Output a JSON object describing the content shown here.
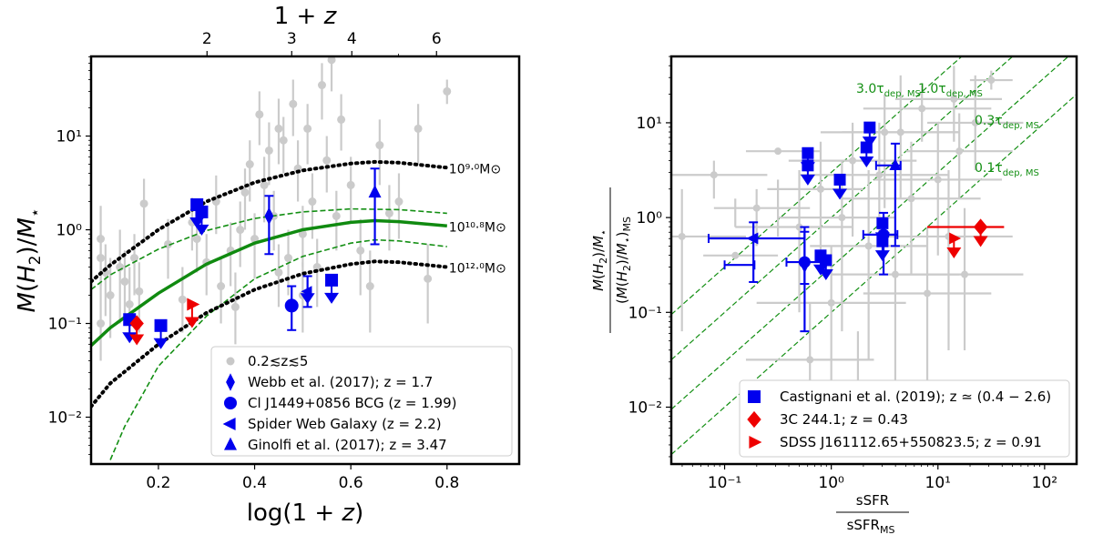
{
  "chart_data": [
    {
      "type": "scatter",
      "panel": "left",
      "xlabel": "log(1 + z)",
      "ylabel": "M(H2)/M*",
      "top_xlabel": "1 + z",
      "xlim": [
        0.06,
        0.95
      ],
      "ylim_log10": [
        -2.5,
        1.85
      ],
      "yscale": "log",
      "x_ticks": [
        0.2,
        0.4,
        0.6,
        0.8
      ],
      "y_ticks": [
        {
          "exp": -2,
          "label": "10⁻²"
        },
        {
          "exp": -1,
          "label": "10⁻¹"
        },
        {
          "exp": 0,
          "label": "10⁰"
        },
        {
          "exp": 1,
          "label": "10¹"
        }
      ],
      "top_ticks": [
        {
          "value": 2,
          "label": "2"
        },
        {
          "value": 3,
          "label": "3"
        },
        {
          "value": 4,
          "label": "4"
        },
        {
          "value": 6,
          "label": "6"
        }
      ],
      "legend_position": "lower-right",
      "curves": [
        {
          "name": "10^{9.0} M⊙",
          "label": "10⁹·⁰M⊙",
          "style": "dotted-black",
          "points": [
            [
              0.06,
              0.28
            ],
            [
              0.1,
              0.42
            ],
            [
              0.2,
              1.0
            ],
            [
              0.3,
              2.0
            ],
            [
              0.4,
              3.2
            ],
            [
              0.5,
              4.3
            ],
            [
              0.6,
              5.1
            ],
            [
              0.65,
              5.3
            ],
            [
              0.7,
              5.2
            ],
            [
              0.8,
              4.6
            ]
          ]
        },
        {
          "name": "10^{10.8} M⊙",
          "label": "10¹⁰·⁸M⊙",
          "style": "solid-green",
          "points": [
            [
              0.06,
              0.058
            ],
            [
              0.1,
              0.09
            ],
            [
              0.2,
              0.21
            ],
            [
              0.3,
              0.43
            ],
            [
              0.4,
              0.72
            ],
            [
              0.5,
              1.0
            ],
            [
              0.6,
              1.2
            ],
            [
              0.65,
              1.25
            ],
            [
              0.7,
              1.22
            ],
            [
              0.8,
              1.1
            ]
          ]
        },
        {
          "name": "upper-band",
          "style": "dashed-green",
          "points": [
            [
              0.06,
              0.23
            ],
            [
              0.1,
              0.33
            ],
            [
              0.2,
              0.62
            ],
            [
              0.3,
              0.98
            ],
            [
              0.4,
              1.32
            ],
            [
              0.5,
              1.55
            ],
            [
              0.6,
              1.67
            ],
            [
              0.7,
              1.64
            ],
            [
              0.8,
              1.5
            ]
          ]
        },
        {
          "name": "lower-band",
          "style": "dashed-green",
          "points": [
            [
              0.1,
              0.0035
            ],
            [
              0.13,
              0.008
            ],
            [
              0.16,
              0.015
            ],
            [
              0.2,
              0.035
            ],
            [
              0.3,
              0.12
            ],
            [
              0.4,
              0.3
            ],
            [
              0.5,
              0.52
            ],
            [
              0.6,
              0.72
            ],
            [
              0.65,
              0.78
            ],
            [
              0.7,
              0.76
            ],
            [
              0.8,
              0.66
            ]
          ]
        },
        {
          "name": "10^{12.0} M⊙",
          "label": "10¹²·⁰M⊙",
          "style": "dotted-black",
          "points": [
            [
              0.06,
              0.013
            ],
            [
              0.1,
              0.023
            ],
            [
              0.2,
              0.06
            ],
            [
              0.3,
              0.13
            ],
            [
              0.4,
              0.23
            ],
            [
              0.5,
              0.34
            ],
            [
              0.6,
              0.43
            ],
            [
              0.65,
              0.46
            ],
            [
              0.7,
              0.45
            ],
            [
              0.8,
              0.4
            ]
          ]
        }
      ],
      "background_points": [
        [
          0.08,
          0.8,
          0.3,
          1.8
        ],
        [
          0.08,
          0.5,
          0.25,
          0.9
        ],
        [
          0.08,
          0.1,
          0.04,
          0.4
        ],
        [
          0.09,
          0.35,
          0.12,
          0.7
        ],
        [
          0.1,
          0.2,
          0.07,
          0.5
        ],
        [
          0.12,
          0.4,
          0.1,
          1.0
        ],
        [
          0.13,
          0.28,
          0.1,
          0.6
        ],
        [
          0.14,
          0.16,
          0.07,
          0.4
        ],
        [
          0.15,
          0.5,
          0.2,
          0.9
        ],
        [
          0.16,
          0.22,
          0.08,
          0.45
        ],
        [
          0.17,
          1.9,
          0.8,
          3.5
        ],
        [
          0.22,
          0.7,
          0.3,
          1.3
        ],
        [
          0.25,
          0.18,
          0.08,
          0.4
        ],
        [
          0.27,
          1.2,
          0.6,
          2.2
        ],
        [
          0.3,
          0.45,
          0.2,
          0.9
        ],
        [
          0.32,
          2.0,
          0.9,
          3.8
        ],
        [
          0.35,
          0.6,
          0.25,
          1.2
        ],
        [
          0.37,
          1.0,
          0.4,
          2.0
        ],
        [
          0.38,
          2.5,
          1.0,
          4.5
        ],
        [
          0.39,
          5.0,
          2.0,
          9.0
        ],
        [
          0.4,
          0.8,
          0.3,
          1.5
        ],
        [
          0.41,
          17,
          8,
          30
        ],
        [
          0.42,
          3.0,
          1.2,
          6
        ],
        [
          0.43,
          7.0,
          3,
          14
        ],
        [
          0.44,
          1.4,
          0.6,
          2.6
        ],
        [
          0.45,
          0.35,
          0.15,
          0.7
        ],
        [
          0.46,
          9.0,
          4,
          16
        ],
        [
          0.47,
          0.5,
          0.2,
          1.0
        ],
        [
          0.48,
          22,
          10,
          40
        ],
        [
          0.49,
          4.5,
          2,
          9
        ],
        [
          0.5,
          0.9,
          0.4,
          1.8
        ],
        [
          0.51,
          12,
          5,
          22
        ],
        [
          0.52,
          2.0,
          0.8,
          4
        ],
        [
          0.53,
          0.4,
          0.15,
          0.8
        ],
        [
          0.54,
          35,
          15,
          60
        ],
        [
          0.55,
          5.5,
          2.5,
          10
        ],
        [
          0.56,
          65,
          30,
          110
        ],
        [
          0.57,
          1.4,
          0.6,
          2.6
        ],
        [
          0.58,
          15,
          7,
          28
        ],
        [
          0.6,
          3.0,
          1.2,
          6
        ],
        [
          0.62,
          0.6,
          0.2,
          1.3
        ],
        [
          0.64,
          0.25,
          0.08,
          0.6
        ],
        [
          0.66,
          8.0,
          3,
          15
        ],
        [
          0.68,
          1.5,
          0.6,
          3
        ],
        [
          0.7,
          2.0,
          0.8,
          4
        ],
        [
          0.74,
          12,
          5,
          22
        ],
        [
          0.76,
          0.3,
          0.1,
          0.7
        ],
        [
          0.8,
          30,
          22,
          40
        ],
        [
          0.36,
          0.15,
          0.06,
          0.35
        ],
        [
          0.33,
          0.25,
          0.1,
          0.5
        ],
        [
          0.28,
          0.8,
          0.35,
          1.6
        ],
        [
          0.5,
          0.2,
          0.08,
          0.45
        ],
        [
          0.45,
          12,
          5,
          25
        ]
      ],
      "series": [
        {
          "name": "0.2≲z≲5",
          "label": "0.2≲z≲5",
          "marker": "circle",
          "color": "#c8c8c8"
        },
        {
          "name": "Webb et al. (2017); z = 1.7",
          "label": "Webb et al. (2017); z = 1.7",
          "marker": "thin-diamond",
          "color": "#0000ee",
          "points": [
            [
              0.43,
              1.4,
              0.55,
              2.3
            ]
          ]
        },
        {
          "name": "Cl J1449+0856 BCG (z = 1.99)",
          "label": "Cl J1449+0856 BCG (z = 1.99)",
          "marker": "circle",
          "color": "#0000ee",
          "points": [
            [
              0.477,
              0.155,
              0.085,
              0.25
            ]
          ]
        },
        {
          "name": "Spider Web Galaxy (z = 2.2)",
          "label": "Spider Web Galaxy (z = 2.2)",
          "marker": "triangle-left",
          "color": "#0000ee",
          "points": [
            [
              0.51,
              0.22,
              0.15,
              0.32
            ]
          ]
        },
        {
          "name": "Ginolfi et al. (2017); z = 3.47",
          "label": "Ginolfi et al. (2017); z = 3.47",
          "marker": "triangle-up",
          "color": "#0000ee",
          "points": [
            [
              0.65,
              2.5,
              0.7,
              4.5
            ]
          ]
        },
        {
          "name": "Castignani et al. (2019)",
          "marker": "square-upperlimit",
          "color": "#0000ee",
          "points": [
            [
              0.14,
              0.11
            ],
            [
              0.205,
              0.095
            ],
            [
              0.28,
              1.85
            ],
            [
              0.29,
              1.55
            ],
            [
              0.56,
              0.29
            ]
          ]
        },
        {
          "name": "3C 244.1",
          "marker": "diamond-upperlimit",
          "color": "#ee0000",
          "points": [
            [
              0.155,
              0.1
            ]
          ]
        },
        {
          "name": "SDSS J161112.65+550823.5",
          "marker": "triangle-right-upperlimit",
          "color": "#ee0000",
          "points": [
            [
              0.27,
              0.16
            ]
          ]
        }
      ]
    },
    {
      "type": "scatter",
      "panel": "right",
      "xlabel_num": "sSFR",
      "xlabel_den": "sSFR",
      "xlabel_den_sub": "MS",
      "ylabel_num": "M(H2)/M*",
      "ylabel_den": "(M(H2)/M*)",
      "ylabel_den_sub": "MS",
      "xscale": "log",
      "yscale": "log",
      "xlim_log10": [
        -1.5,
        2.3
      ],
      "ylim_log10": [
        -2.6,
        1.7
      ],
      "x_ticks": [
        {
          "exp": -1,
          "label": "10⁻¹"
        },
        {
          "exp": 0,
          "label": "10⁰"
        },
        {
          "exp": 1,
          "label": "10¹"
        },
        {
          "exp": 2,
          "label": "10²"
        }
      ],
      "y_ticks": [
        {
          "exp": -2,
          "label": "10⁻²"
        },
        {
          "exp": -1,
          "label": "10⁻¹"
        },
        {
          "exp": 0,
          "label": "10⁰"
        },
        {
          "exp": 1,
          "label": "10¹"
        }
      ],
      "legend_position": "lower-right",
      "depletion_lines": [
        {
          "factor": 3.0,
          "label_main": "3.0τ",
          "label_sub": "dep, MS"
        },
        {
          "factor": 1.0,
          "label_main": "1.0τ",
          "label_sub": "dep, MS"
        },
        {
          "factor": 0.3,
          "label_main": "0.3τ",
          "label_sub": "dep, MS"
        },
        {
          "factor": 0.1,
          "label_main": "0.1τ",
          "label_sub": "dep, MS"
        }
      ],
      "background_points": [
        [
          -1.4,
          -0.2,
          -1.5,
          -0.8,
          0.3,
          -1.2,
          -1.5,
          0.1
        ],
        [
          -1.1,
          0.45,
          -1.5,
          -0.6,
          0.2,
          0.6,
          -0.1,
          0.2
        ],
        [
          -0.9,
          -0.4,
          -1.2,
          -0.5,
          0.2,
          -0.1,
          0.0,
          0.0
        ],
        [
          -0.7,
          0.1,
          -1.1,
          -0.2,
          0.3,
          -0.3,
          0.0,
          0.0
        ],
        [
          -0.5,
          0.7,
          -0.8,
          -0.1,
          0.4,
          -0.2,
          0.0,
          0.0
        ],
        [
          -0.3,
          -0.1,
          -0.9,
          0.2,
          0.5,
          -1.0,
          -0.1,
          0.0
        ],
        [
          -0.1,
          0.3,
          -0.6,
          0.3,
          0.8,
          -0.5,
          -0.1,
          0.0
        ],
        [
          0.1,
          0.0,
          -0.5,
          0.6,
          0.6,
          -1.2,
          -0.1,
          0.0
        ],
        [
          0.2,
          0.6,
          -0.4,
          0.8,
          1.0,
          -0.2,
          -0.1,
          0.0
        ],
        [
          0.35,
          -0.3,
          -0.2,
          0.9,
          0.5,
          -1.5,
          -0.1,
          0.0
        ],
        [
          0.5,
          0.9,
          -0.1,
          1.2,
          1.3,
          0.1,
          0.0,
          0.0
        ],
        [
          0.6,
          -0.6,
          0.0,
          1.2,
          0.3,
          -1.8,
          -0.1,
          0.0
        ],
        [
          0.75,
          0.2,
          0.1,
          1.4,
          0.8,
          -0.6,
          0.0,
          0.0
        ],
        [
          0.85,
          1.15,
          0.3,
          1.5,
          1.4,
          0.8,
          0.0,
          0.0
        ],
        [
          1.0,
          0.4,
          0.4,
          1.6,
          1.0,
          -0.4,
          0.0,
          0.0
        ],
        [
          1.1,
          -0.2,
          0.5,
          1.7,
          0.5,
          -1.4,
          0.0,
          0.0
        ],
        [
          1.2,
          0.7,
          0.7,
          1.7,
          1.1,
          0.2,
          0.0,
          0.0
        ],
        [
          1.35,
          1.0,
          0.9,
          1.8,
          1.5,
          0.5,
          0.0,
          0.0
        ],
        [
          1.5,
          1.45,
          1.3,
          1.7,
          1.55,
          1.35,
          0.0,
          0.0
        ],
        [
          0.45,
          0.45,
          -0.3,
          1.1,
          1.0,
          -0.3,
          0.0,
          0.0
        ],
        [
          0.9,
          -0.8,
          0.3,
          1.5,
          -0.1,
          -1.8,
          0.0,
          0.0
        ],
        [
          0.0,
          -0.9,
          -0.7,
          0.7,
          -0.3,
          -1.8,
          0.0,
          0.0
        ],
        [
          1.25,
          -0.6,
          0.6,
          1.8,
          0.1,
          -1.4,
          0.0,
          0.0
        ],
        [
          0.65,
          0.9,
          0.1,
          1.2,
          1.5,
          0.2,
          0.0,
          0.0
        ],
        [
          1.15,
          1.25,
          0.6,
          1.6,
          1.6,
          0.8,
          0.0,
          0.0
        ],
        [
          -0.2,
          -1.5,
          -0.8,
          0.4,
          -0.9,
          -2.2,
          0.0,
          0.0
        ],
        [
          0.25,
          -1.8,
          -0.3,
          0.8,
          -1.2,
          -2.4,
          0.0,
          0.0
        ]
      ],
      "series": [
        {
          "name": "Castignani et al. (2019); z ≃ (0.4 − 2.6)",
          "label": "Castignani et al. (2019); z ≃ (0.4 − 2.6)",
          "marker": "square",
          "color": "#0000ee",
          "points": [
            [
              -0.22,
              0.68
            ],
            [
              -0.22,
              0.55
            ],
            [
              0.08,
              0.4
            ],
            [
              0.36,
              0.95
            ],
            [
              0.33,
              0.74
            ],
            [
              0.48,
              -0.06
            ],
            [
              0.48,
              -0.25
            ],
            [
              -0.05,
              -0.45
            ],
            [
              -0.1,
              -0.4
            ]
          ]
        },
        {
          "name": "3C 244.1; z = 0.43",
          "label": "3C 244.1; z = 0.43",
          "marker": "diamond",
          "color": "#ee0000",
          "points": [
            [
              1.4,
              -0.1
            ]
          ]
        },
        {
          "name": "SDSS J161112.65+550823.5; z = 0.91",
          "label": "SDSS J161112.65+550823.5; z = 0.91",
          "marker": "triangle-right",
          "color": "#ee0000",
          "points": [
            [
              1.15,
              -0.22
            ]
          ]
        },
        {
          "name": "blue-errorbar-points",
          "marker": "circle",
          "color": "#0000ee",
          "points": [
            [
              -0.25,
              -0.5,
              -0.72,
              -1.0,
              -0.15,
              -0.7
            ],
            [
              0.6,
              0.55,
              0.42,
              0.65,
              0.78,
              -0.3
            ],
            [
              0.49,
              -0.18,
              0.3,
              0.62,
              0.05,
              -0.6
            ],
            [
              -0.73,
              -0.22,
              -1.15,
              -0.25,
              -0.05,
              -0.68
            ],
            [
              -0.25,
              -0.47,
              -0.42,
              -0.05,
              -0.1,
              -1.2
            ]
          ]
        }
      ]
    }
  ]
}
